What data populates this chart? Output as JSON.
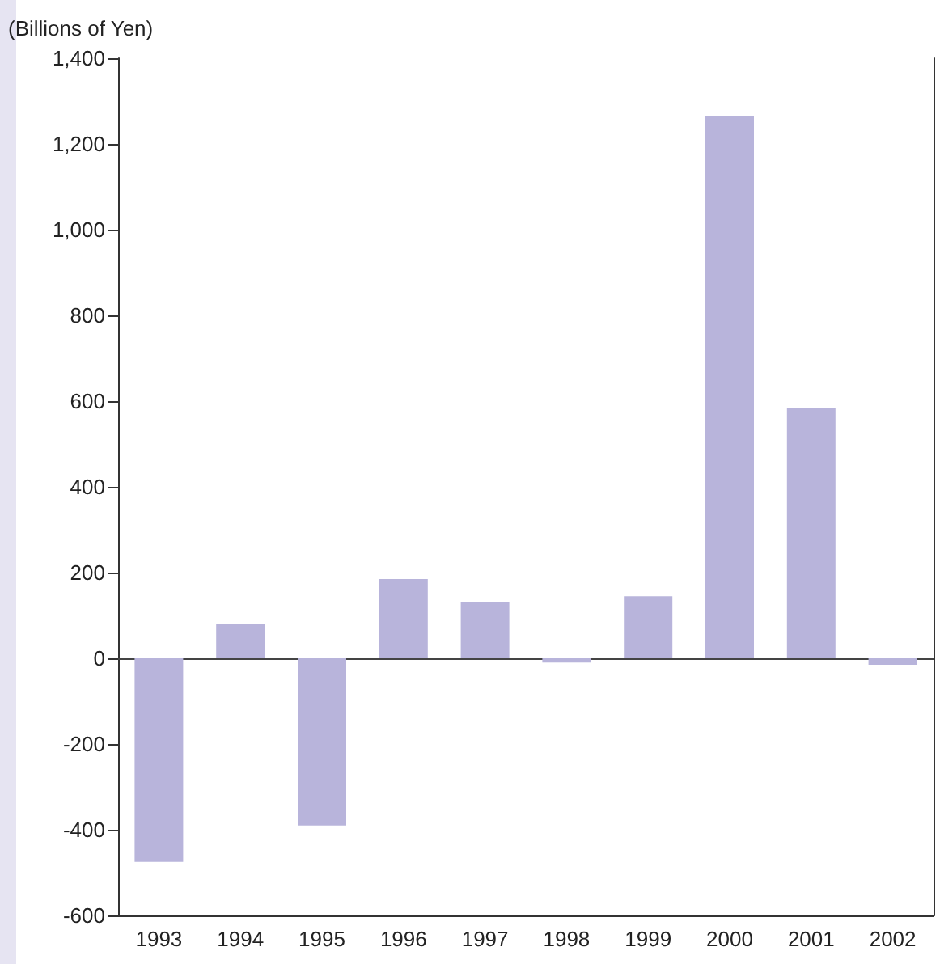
{
  "chart_data": {
    "type": "bar",
    "ylabel": "(Billions of Yen)",
    "categories": [
      "1993",
      "1994",
      "1995",
      "1996",
      "1997",
      "1998",
      "1999",
      "2000",
      "2001",
      "2002"
    ],
    "values": [
      -475,
      80,
      -390,
      185,
      130,
      -10,
      145,
      1265,
      585,
      -15
    ],
    "color": "#b8b4db",
    "ylim": [
      -600,
      1400
    ],
    "yticks": [
      -600,
      -400,
      -200,
      0,
      200,
      400,
      600,
      800,
      {
        "value": 1000,
        "label": "1,000"
      },
      {
        "value": 1200,
        "label": "1,200"
      },
      {
        "value": 1400,
        "label": "1,400"
      }
    ]
  }
}
